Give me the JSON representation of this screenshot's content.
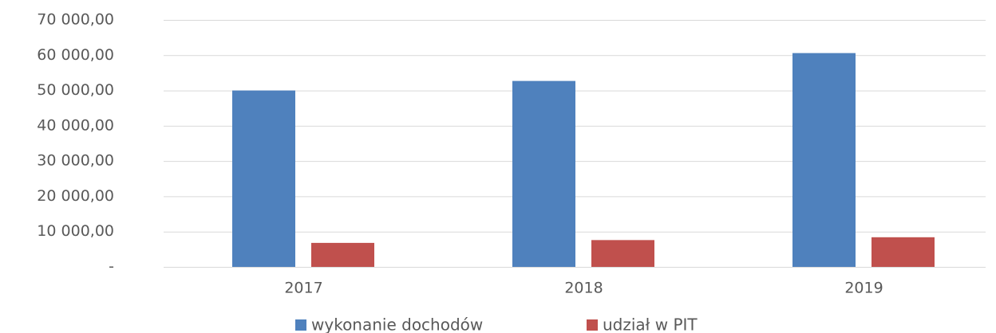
{
  "chart_data": {
    "type": "bar",
    "categories": [
      "2017",
      "2018",
      "2019"
    ],
    "series": [
      {
        "name": "wykonanie dochodów",
        "color": "#4f81bd",
        "values": [
          50000,
          52700,
          60600
        ]
      },
      {
        "name": "udział w PIT",
        "color": "#c0504d",
        "values": [
          6800,
          7600,
          8400
        ]
      }
    ],
    "ylim": [
      0,
      70000
    ],
    "yticks": [
      {
        "value": 0,
        "label": "-"
      },
      {
        "value": 10000,
        "label": "10 000,00"
      },
      {
        "value": 20000,
        "label": "20 000,00"
      },
      {
        "value": 30000,
        "label": "30 000,00"
      },
      {
        "value": 40000,
        "label": "40 000,00"
      },
      {
        "value": 50000,
        "label": "50 000,00"
      },
      {
        "value": 60000,
        "label": "60 000,00"
      },
      {
        "value": 70000,
        "label": "70 000,00"
      }
    ],
    "grid": true,
    "legend": "bottom"
  }
}
